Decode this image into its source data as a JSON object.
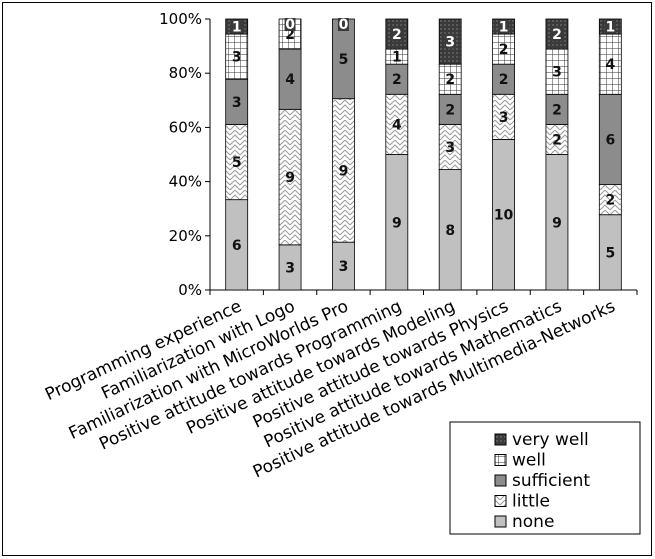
{
  "chart_data": {
    "type": "bar",
    "stacked": true,
    "percent": true,
    "categories": [
      "Programming experience",
      "Familiarization with Logo",
      "Familiarization with MicroWorlds Pro",
      "Positive attitude towards Programming",
      "Positive attitude towards Modeling",
      "Positive attitude towards Physics",
      "Positive attitude towards Mathematics",
      "Positive attitude towards Multimedia-Networks"
    ],
    "series": [
      {
        "name": "none",
        "values": [
          6,
          3,
          3,
          9,
          8,
          10,
          9,
          5
        ],
        "color": "#c0c0c0",
        "pattern": "solid"
      },
      {
        "name": "little",
        "values": [
          5,
          9,
          9,
          4,
          3,
          3,
          2,
          2
        ],
        "color": "#ffffff",
        "pattern": "zigzag"
      },
      {
        "name": "sufficient",
        "values": [
          3,
          4,
          5,
          2,
          2,
          2,
          2,
          6
        ],
        "color": "#8c8c8c",
        "pattern": "solid"
      },
      {
        "name": "well",
        "values": [
          3,
          2,
          0,
          1,
          2,
          2,
          3,
          4
        ],
        "color": "#ffffff",
        "pattern": "grid"
      },
      {
        "name": "very well",
        "values": [
          1,
          0,
          0,
          2,
          3,
          1,
          2,
          1
        ],
        "color": "#3a3a3a",
        "pattern": "dots"
      }
    ],
    "data_labels": [
      [
        "6",
        "3",
        "3",
        "9",
        "8",
        "10",
        "9",
        "5"
      ],
      [
        "5",
        "9",
        "9",
        "4",
        "3",
        "3",
        "2",
        "2"
      ],
      [
        "3",
        "4",
        "5",
        "2",
        "2",
        "2",
        "2",
        "6"
      ],
      [
        "3",
        "2",
        "",
        "1",
        "2",
        "2",
        "3",
        "4"
      ],
      [
        "1",
        "0",
        "0",
        "2",
        "3",
        "1",
        "2",
        "1"
      ]
    ],
    "ylim": [
      0,
      100
    ],
    "yticks": [
      "0%",
      "20%",
      "40%",
      "60%",
      "80%",
      "100%"
    ],
    "legend": {
      "placement": "bottom-right",
      "order": [
        "very well",
        "well",
        "sufficient",
        "little",
        "none"
      ]
    },
    "grid": false
  }
}
